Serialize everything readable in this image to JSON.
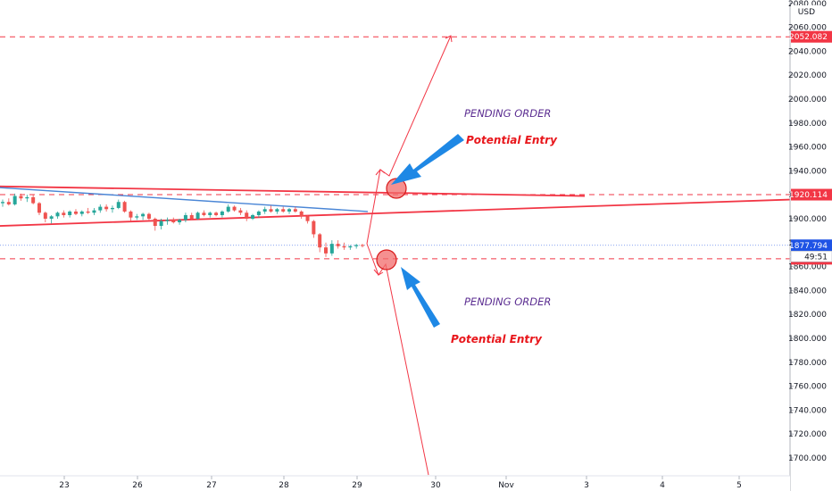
{
  "chart_data": {
    "type": "candlestick",
    "currency": "USD",
    "ylim": [
      1690,
      2080
    ],
    "y_ticks": [
      2080,
      2060,
      2040,
      2020,
      2000,
      1980,
      1960,
      1940,
      1920,
      1900,
      1880,
      1860,
      1840,
      1820,
      1800,
      1780,
      1760,
      1740,
      1720,
      1700
    ],
    "y_tick_labels": [
      "2080.000",
      "2060.000",
      "2040.000",
      "2020.000",
      "2000.000",
      "1980.000",
      "1960.000",
      "1940.000",
      "1920.000",
      "1900.000",
      "1880.000",
      "1860.000",
      "1840.000",
      "1820.000",
      "1800.000",
      "1780.000",
      "1760.000",
      "1740.000",
      "1720.000",
      "1700.000"
    ],
    "x_ticks": [
      "23",
      "26",
      "27",
      "28",
      "29",
      "30",
      "Nov",
      "3",
      "4",
      "5"
    ],
    "price_levels": [
      {
        "value": 2052.082,
        "label": "2052.082",
        "color": "#f23645",
        "style": "dashed"
      },
      {
        "value": 1920.114,
        "label": "1920.114",
        "color": "#f23645",
        "style": "dashed"
      },
      {
        "value": 1866.52,
        "label": "1866.520",
        "color": "#f23645",
        "style": "dashed"
      }
    ],
    "last_price": {
      "value": 1877.794,
      "label": "1877.794",
      "countdown": "49:51",
      "color": "#1e53e5"
    },
    "trendlines": [
      {
        "name": "upper-resistance",
        "color": "#f23645",
        "from": {
          "day": "22",
          "value": 1927
        },
        "to": {
          "day": "3",
          "value": 1919
        }
      },
      {
        "name": "lower-support",
        "color": "#f23645",
        "from": {
          "day": "22",
          "value": 1894
        },
        "to": {
          "day": "5+",
          "value": 1916
        }
      },
      {
        "name": "descending-line",
        "color": "#4a86d6",
        "from": {
          "day": "22",
          "value": 1926
        },
        "to": {
          "day": "29",
          "value": 1906
        }
      }
    ],
    "candles": [
      {
        "d": "22",
        "o": 1913,
        "h": 1916,
        "l": 1910,
        "c": 1914
      },
      {
        "d": "22",
        "o": 1914,
        "h": 1917,
        "l": 1911,
        "c": 1912
      },
      {
        "d": "22",
        "o": 1912,
        "h": 1921,
        "l": 1911,
        "c": 1919
      },
      {
        "d": "22",
        "o": 1919,
        "h": 1921,
        "l": 1915,
        "c": 1917
      },
      {
        "d": "22",
        "o": 1917,
        "h": 1920,
        "l": 1914,
        "c": 1918
      },
      {
        "d": "22",
        "o": 1918,
        "h": 1920,
        "l": 1912,
        "c": 1913
      },
      {
        "d": "23",
        "o": 1913,
        "h": 1914,
        "l": 1903,
        "c": 1905
      },
      {
        "d": "23",
        "o": 1905,
        "h": 1906,
        "l": 1897,
        "c": 1900
      },
      {
        "d": "23",
        "o": 1900,
        "h": 1903,
        "l": 1896,
        "c": 1902
      },
      {
        "d": "23",
        "o": 1902,
        "h": 1906,
        "l": 1900,
        "c": 1905
      },
      {
        "d": "23",
        "o": 1905,
        "h": 1907,
        "l": 1901,
        "c": 1903
      },
      {
        "d": "23",
        "o": 1903,
        "h": 1907,
        "l": 1901,
        "c": 1906
      },
      {
        "d": "23",
        "o": 1906,
        "h": 1908,
        "l": 1903,
        "c": 1904
      },
      {
        "d": "23",
        "o": 1904,
        "h": 1907,
        "l": 1902,
        "c": 1906
      },
      {
        "d": "23",
        "o": 1906,
        "h": 1909,
        "l": 1904,
        "c": 1905
      },
      {
        "d": "23",
        "o": 1905,
        "h": 1909,
        "l": 1903,
        "c": 1907
      },
      {
        "d": "23",
        "o": 1907,
        "h": 1912,
        "l": 1905,
        "c": 1910
      },
      {
        "d": "23",
        "o": 1910,
        "h": 1912,
        "l": 1906,
        "c": 1908
      },
      {
        "d": "23",
        "o": 1908,
        "h": 1911,
        "l": 1905,
        "c": 1909
      },
      {
        "d": "23",
        "o": 1909,
        "h": 1916,
        "l": 1908,
        "c": 1914
      },
      {
        "d": "23",
        "o": 1914,
        "h": 1915,
        "l": 1905,
        "c": 1906
      },
      {
        "d": "26",
        "o": 1906,
        "h": 1907,
        "l": 1898,
        "c": 1901
      },
      {
        "d": "26",
        "o": 1901,
        "h": 1904,
        "l": 1899,
        "c": 1902
      },
      {
        "d": "26",
        "o": 1902,
        "h": 1905,
        "l": 1899,
        "c": 1904
      },
      {
        "d": "26",
        "o": 1904,
        "h": 1905,
        "l": 1899,
        "c": 1900
      },
      {
        "d": "26",
        "o": 1900,
        "h": 1901,
        "l": 1890,
        "c": 1894
      },
      {
        "d": "26",
        "o": 1894,
        "h": 1900,
        "l": 1891,
        "c": 1898
      },
      {
        "d": "26",
        "o": 1898,
        "h": 1901,
        "l": 1895,
        "c": 1899
      },
      {
        "d": "26",
        "o": 1899,
        "h": 1901,
        "l": 1896,
        "c": 1897
      },
      {
        "d": "26",
        "o": 1897,
        "h": 1900,
        "l": 1895,
        "c": 1899
      },
      {
        "d": "26",
        "o": 1899,
        "h": 1905,
        "l": 1897,
        "c": 1903
      },
      {
        "d": "26",
        "o": 1903,
        "h": 1905,
        "l": 1899,
        "c": 1900
      },
      {
        "d": "27",
        "o": 1900,
        "h": 1906,
        "l": 1899,
        "c": 1905
      },
      {
        "d": "27",
        "o": 1905,
        "h": 1907,
        "l": 1902,
        "c": 1903
      },
      {
        "d": "27",
        "o": 1903,
        "h": 1906,
        "l": 1901,
        "c": 1905
      },
      {
        "d": "27",
        "o": 1905,
        "h": 1906,
        "l": 1902,
        "c": 1903
      },
      {
        "d": "27",
        "o": 1903,
        "h": 1907,
        "l": 1901,
        "c": 1906
      },
      {
        "d": "27",
        "o": 1906,
        "h": 1912,
        "l": 1905,
        "c": 1910
      },
      {
        "d": "27",
        "o": 1910,
        "h": 1911,
        "l": 1906,
        "c": 1907
      },
      {
        "d": "27",
        "o": 1907,
        "h": 1909,
        "l": 1903,
        "c": 1905
      },
      {
        "d": "27",
        "o": 1905,
        "h": 1907,
        "l": 1898,
        "c": 1900
      },
      {
        "d": "28",
        "o": 1900,
        "h": 1904,
        "l": 1899,
        "c": 1903
      },
      {
        "d": "28",
        "o": 1903,
        "h": 1907,
        "l": 1901,
        "c": 1906
      },
      {
        "d": "28",
        "o": 1906,
        "h": 1910,
        "l": 1904,
        "c": 1908
      },
      {
        "d": "28",
        "o": 1908,
        "h": 1911,
        "l": 1905,
        "c": 1906
      },
      {
        "d": "28",
        "o": 1906,
        "h": 1909,
        "l": 1904,
        "c": 1908
      },
      {
        "d": "28",
        "o": 1908,
        "h": 1910,
        "l": 1905,
        "c": 1906
      },
      {
        "d": "28",
        "o": 1906,
        "h": 1909,
        "l": 1904,
        "c": 1908
      },
      {
        "d": "28",
        "o": 1908,
        "h": 1910,
        "l": 1905,
        "c": 1906
      },
      {
        "d": "28",
        "o": 1906,
        "h": 1907,
        "l": 1900,
        "c": 1902
      },
      {
        "d": "28",
        "o": 1902,
        "h": 1903,
        "l": 1896,
        "c": 1898
      },
      {
        "d": "28",
        "o": 1898,
        "h": 1899,
        "l": 1884,
        "c": 1887
      },
      {
        "d": "29",
        "o": 1887,
        "h": 1888,
        "l": 1872,
        "c": 1876
      },
      {
        "d": "29",
        "o": 1876,
        "h": 1880,
        "l": 1868,
        "c": 1871
      },
      {
        "d": "29",
        "o": 1871,
        "h": 1882,
        "l": 1869,
        "c": 1879
      },
      {
        "d": "29",
        "o": 1879,
        "h": 1882,
        "l": 1875,
        "c": 1877
      },
      {
        "d": "29",
        "o": 1877,
        "h": 1880,
        "l": 1874,
        "c": 1876
      },
      {
        "d": "29",
        "o": 1876,
        "h": 1878,
        "l": 1874,
        "c": 1877
      },
      {
        "d": "29",
        "o": 1877,
        "h": 1879,
        "l": 1875,
        "c": 1878
      },
      {
        "d": "29",
        "o": 1878,
        "h": 1879,
        "l": 1876,
        "c": 1877.794
      }
    ],
    "projections": [
      {
        "name": "bullish-path",
        "points": [
          {
            "d": "29",
            "v": 1878
          },
          {
            "d": "29",
            "v": 1941
          },
          {
            "d": "29.5",
            "v": 1922
          },
          {
            "d": "30",
            "v": 2052
          }
        ]
      },
      {
        "name": "bearish-path",
        "points": [
          {
            "d": "29",
            "v": 1878
          },
          {
            "d": "29",
            "v": 1860
          },
          {
            "d": "29.3",
            "v": 1868
          },
          {
            "d": "30",
            "v": 1690
          }
        ]
      }
    ],
    "annotations": [
      {
        "text": "PENDING ORDER",
        "color": "#5b2d91",
        "near": "upper"
      },
      {
        "text": "Potential Entry",
        "color": "#e8161b",
        "near": "upper"
      },
      {
        "text": "PENDING ORDER",
        "color": "#5b2d91",
        "near": "lower"
      },
      {
        "text": "Potential Entry",
        "color": "#e8161b",
        "near": "lower"
      }
    ],
    "colors": {
      "up": "#26a69a",
      "down": "#ef5350",
      "accent": "#f23645",
      "arrow": "#1e88e5"
    }
  }
}
